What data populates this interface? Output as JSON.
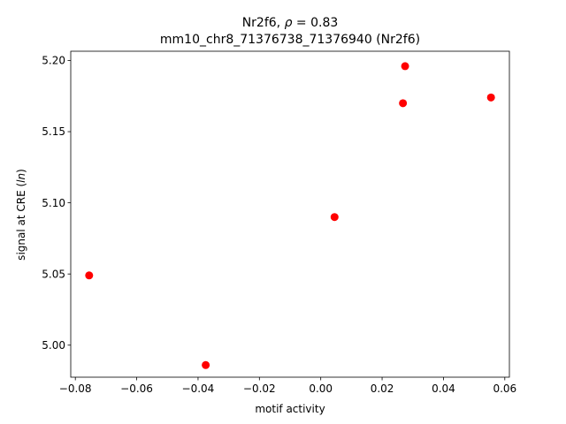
{
  "chart_data": {
    "type": "scatter",
    "title_line1_prefix": "Nr2f6, ",
    "title_line1_symbol": "ρ",
    "title_line1_suffix": " = 0.83",
    "title_line2": "mm10_chr8_71376738_71376940 (Nr2f6)",
    "xlabel": "motif activity",
    "ylabel_prefix": "signal at CRE (",
    "ylabel_italic": "ln",
    "ylabel_suffix": ")",
    "xlim": [
      -0.0815,
      0.0615
    ],
    "ylim": [
      4.9775,
      5.2065
    ],
    "xticks": [
      -0.08,
      -0.06,
      -0.04,
      -0.02,
      0.0,
      0.02,
      0.04,
      0.06
    ],
    "xtick_labels": [
      "−0.08",
      "−0.06",
      "−0.04",
      "−0.02",
      "0.00",
      "0.02",
      "0.04",
      "0.06"
    ],
    "yticks": [
      5.0,
      5.05,
      5.1,
      5.15,
      5.2
    ],
    "ytick_labels": [
      "5.00",
      "5.05",
      "5.10",
      "5.15",
      "5.20"
    ],
    "grid": false,
    "marker_color": "#ff0000",
    "points": [
      {
        "x": -0.0755,
        "y": 5.049
      },
      {
        "x": -0.0375,
        "y": 4.986
      },
      {
        "x": 0.0045,
        "y": 5.09
      },
      {
        "x": 0.0268,
        "y": 5.17
      },
      {
        "x": 0.0275,
        "y": 5.196
      },
      {
        "x": 0.0555,
        "y": 5.174
      }
    ]
  }
}
